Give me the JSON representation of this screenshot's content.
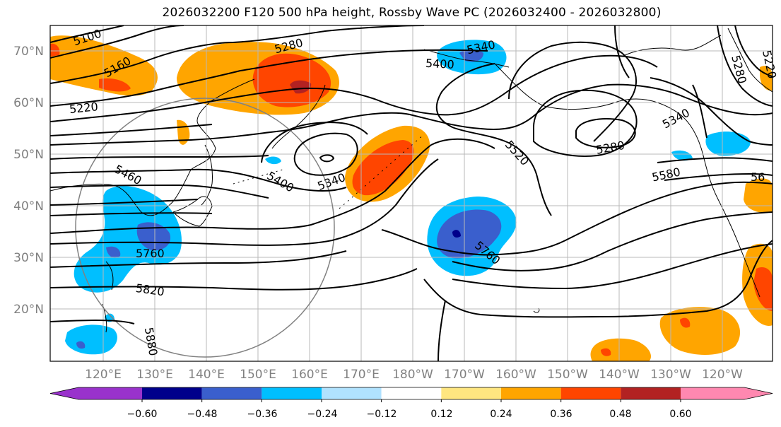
{
  "title": "2026032200 F120 500 hPa height, Rossby Wave PC (2026032400 - 2026032800)",
  "lat_ticks": [
    "70°N",
    "60°N",
    "50°N",
    "40°N",
    "30°N",
    "20°N"
  ],
  "lon_ticks": [
    "120°E",
    "130°E",
    "140°E",
    "150°E",
    "160°E",
    "170°E",
    "180°W",
    "170°W",
    "160°W",
    "150°W",
    "140°W",
    "130°W",
    "120°W"
  ],
  "contour_labels": [
    "5100",
    "5160",
    "5220",
    "5280",
    "5340",
    "5400",
    "5340",
    "5400",
    "5460",
    "5520",
    "5280",
    "5340",
    "5580",
    "5760",
    "5760",
    "5820",
    "5880",
    "5280",
    "5220",
    "56"
  ],
  "colorbar": {
    "ticks": [
      "−0.60",
      "−0.48",
      "−0.36",
      "−0.24",
      "−0.12",
      "0.12",
      "0.24",
      "0.36",
      "0.48",
      "0.60"
    ],
    "colors": [
      "#9932cc",
      "#00008b",
      "#3a5fcd",
      "#00bfff",
      "#b0e2ff",
      "#ffffff",
      "#ffe680",
      "#ffa500",
      "#ff4500",
      "#b22222",
      "#ff88b0"
    ]
  },
  "colors": {
    "neg_light": "#00bfff",
    "neg_mid": "#3a5fcd",
    "neg_dark": "#00008b",
    "pos_light": "#ffa500",
    "pos_mid": "#ff4500",
    "pos_dark": "#b22222"
  }
}
